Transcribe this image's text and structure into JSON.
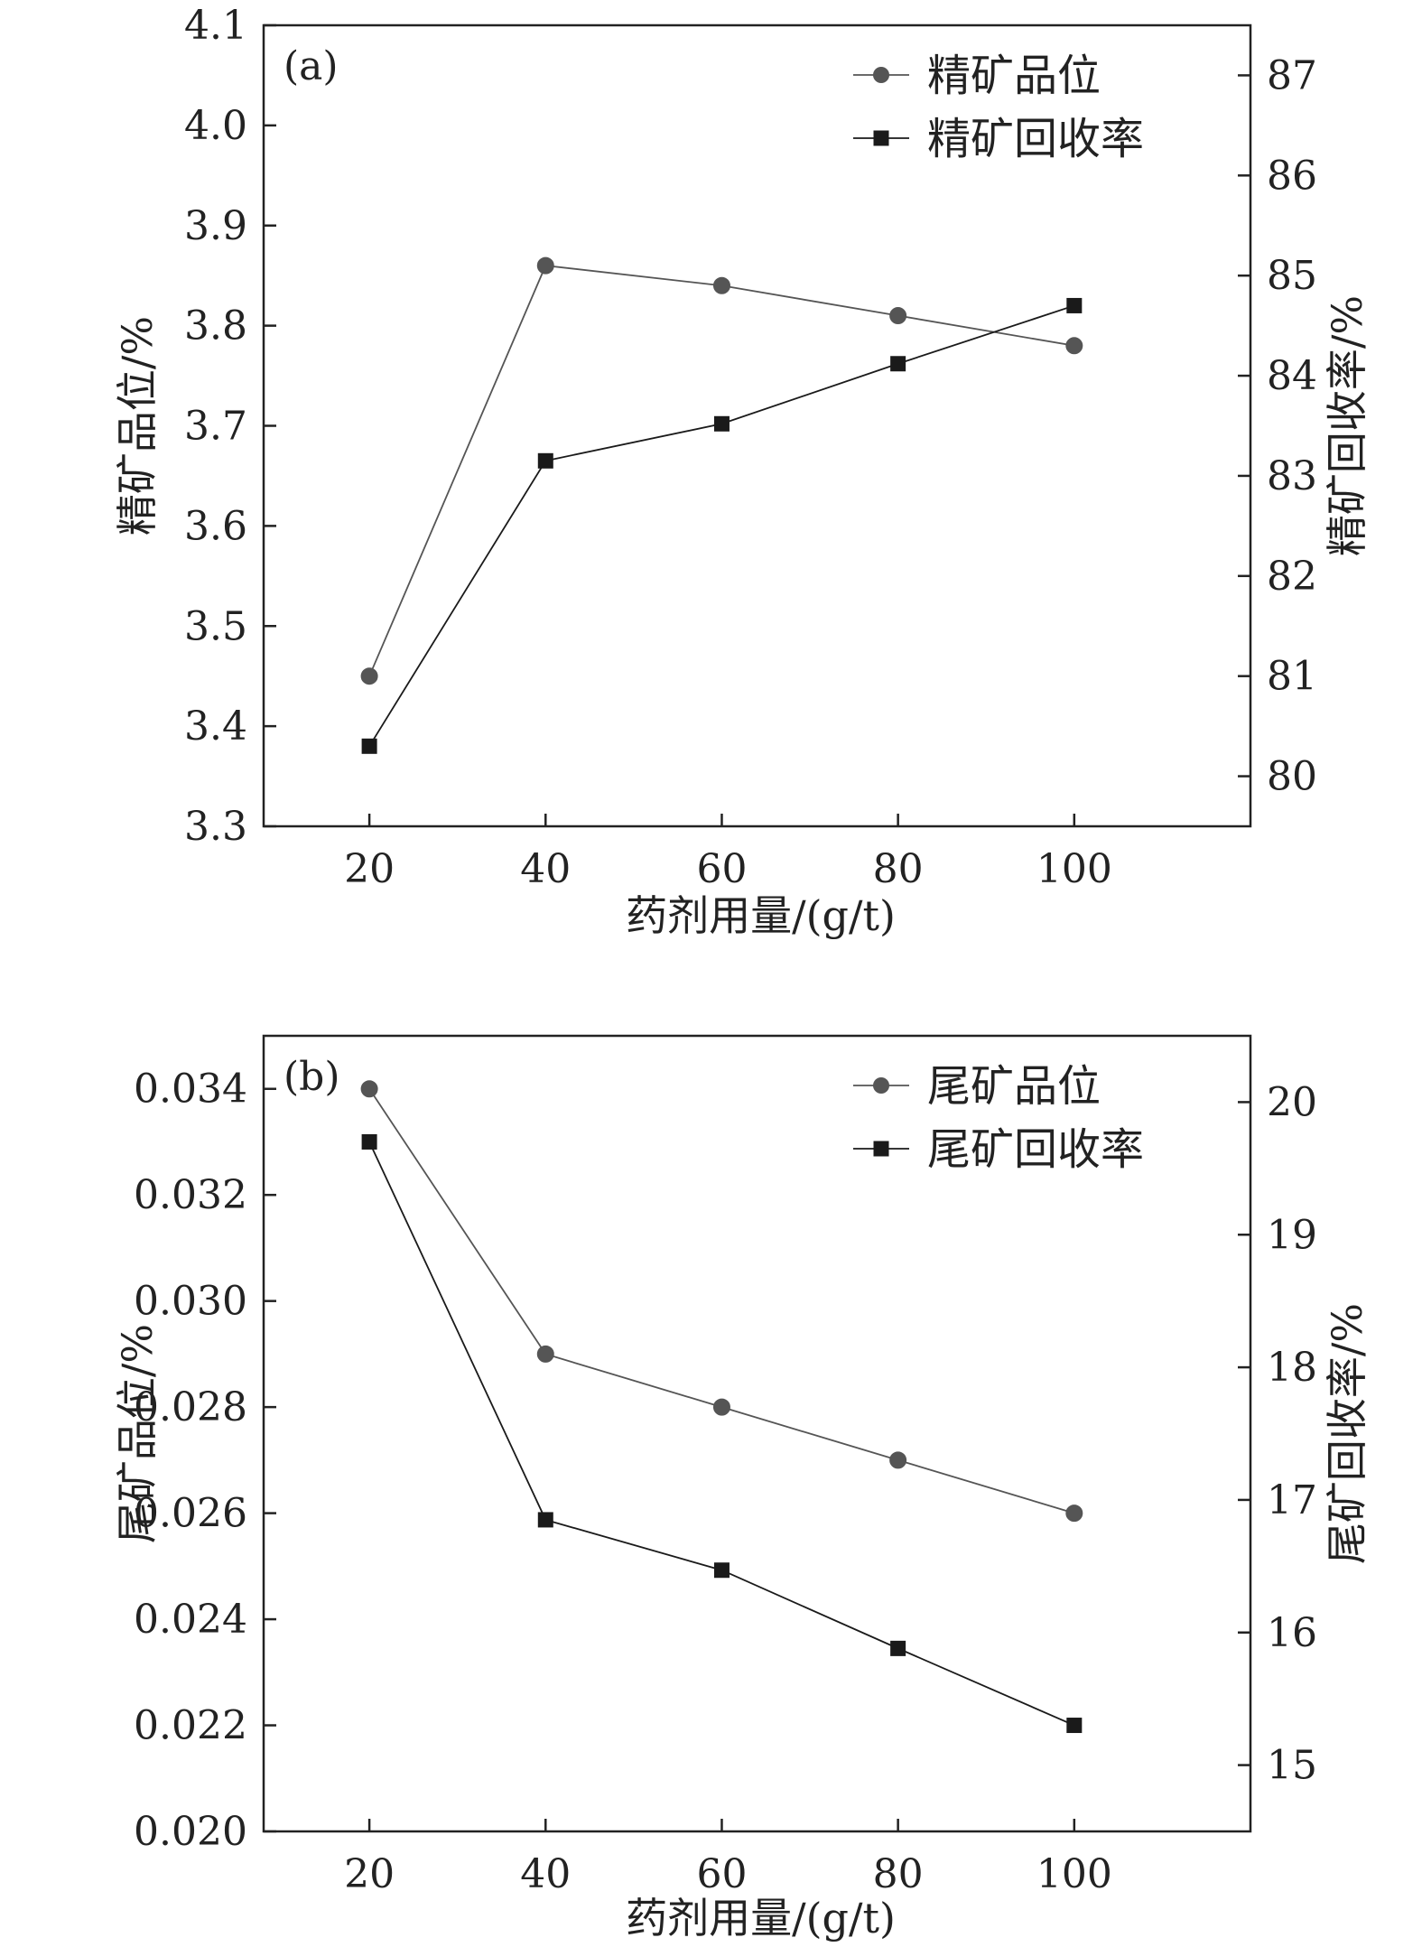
{
  "colors": {
    "axis": "#222222",
    "grade_series": "#555555",
    "recovery_series": "#1a1a1a",
    "background": "#ffffff"
  },
  "chart_data": [
    {
      "type": "line",
      "panel_tag": "(a)",
      "xlabel": "药剂用量/(g/t)",
      "ylabel_left": "精矿品位/%",
      "ylabel_right": "精矿回收率/%",
      "x": [
        20,
        40,
        60,
        80,
        100
      ],
      "x_ticks": [
        "20",
        "40",
        "60",
        "80",
        "100"
      ],
      "xlim": [
        8,
        120
      ],
      "ylim_left": [
        3.3,
        4.1
      ],
      "yticks_left": [
        "3.3",
        "3.4",
        "3.5",
        "3.6",
        "3.7",
        "3.8",
        "3.9",
        "4.0",
        "4.1"
      ],
      "ylim_right": [
        79.5,
        87.5
      ],
      "yticks_right": [
        "80",
        "81",
        "82",
        "83",
        "84",
        "85",
        "86",
        "87"
      ],
      "legend_position": "top-right",
      "series": [
        {
          "name": "精矿品位",
          "axis": "left",
          "marker": "circle",
          "values": [
            3.45,
            3.86,
            3.84,
            3.81,
            3.78
          ]
        },
        {
          "name": "精矿回收率",
          "axis": "right",
          "marker": "square",
          "values": [
            80.3,
            83.15,
            83.52,
            84.12,
            84.7
          ]
        }
      ]
    },
    {
      "type": "line",
      "panel_tag": "(b)",
      "xlabel": "药剂用量/(g/t)",
      "ylabel_left": "尾矿品位/%",
      "ylabel_right": "尾矿回收率/%",
      "x": [
        20,
        40,
        60,
        80,
        100
      ],
      "x_ticks": [
        "20",
        "40",
        "60",
        "80",
        "100"
      ],
      "xlim": [
        8,
        120
      ],
      "ylim_left": [
        0.02,
        0.035
      ],
      "yticks_left": [
        "0.020",
        "0.022",
        "0.024",
        "0.026",
        "0.028",
        "0.030",
        "0.032",
        "0.034"
      ],
      "ylim_right": [
        14.5,
        20.5
      ],
      "yticks_right": [
        "15",
        "16",
        "17",
        "18",
        "19",
        "20"
      ],
      "legend_position": "top-right",
      "series": [
        {
          "name": "尾矿品位",
          "axis": "left",
          "marker": "circle",
          "values": [
            0.034,
            0.029,
            0.028,
            0.027,
            0.026
          ]
        },
        {
          "name": "尾矿回收率",
          "axis": "right",
          "marker": "square",
          "values": [
            19.7,
            16.85,
            16.47,
            15.88,
            15.3
          ]
        }
      ]
    }
  ]
}
